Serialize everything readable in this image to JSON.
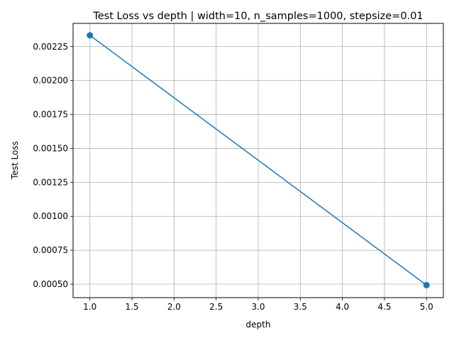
{
  "chart_data": {
    "type": "line",
    "title": "Test Loss vs depth | width=10, n_samples=1000, stepsize=0.01",
    "xlabel": "depth",
    "ylabel": "Test Loss",
    "xlim": [
      0.8,
      5.2
    ],
    "ylim": [
      0.000401,
      0.002421
    ],
    "x_ticks": [
      1.0,
      1.5,
      2.0,
      2.5,
      3.0,
      3.5,
      4.0,
      4.5,
      5.0
    ],
    "x_tick_labels": [
      "1.0",
      "1.5",
      "2.0",
      "2.5",
      "3.0",
      "3.5",
      "4.0",
      "4.5",
      "5.0"
    ],
    "y_ticks": [
      0.0005,
      0.00075,
      0.001,
      0.00125,
      0.0015,
      0.00175,
      0.002,
      0.00225
    ],
    "y_tick_labels": [
      "0.00050",
      "0.00075",
      "0.00100",
      "0.00125",
      "0.00150",
      "0.00175",
      "0.00200",
      "0.00225"
    ],
    "grid": true,
    "series": [
      {
        "x": [
          1,
          5
        ],
        "values": [
          0.002333,
          0.000493
        ],
        "color": "#1f77b4",
        "marker": "circle"
      }
    ]
  }
}
